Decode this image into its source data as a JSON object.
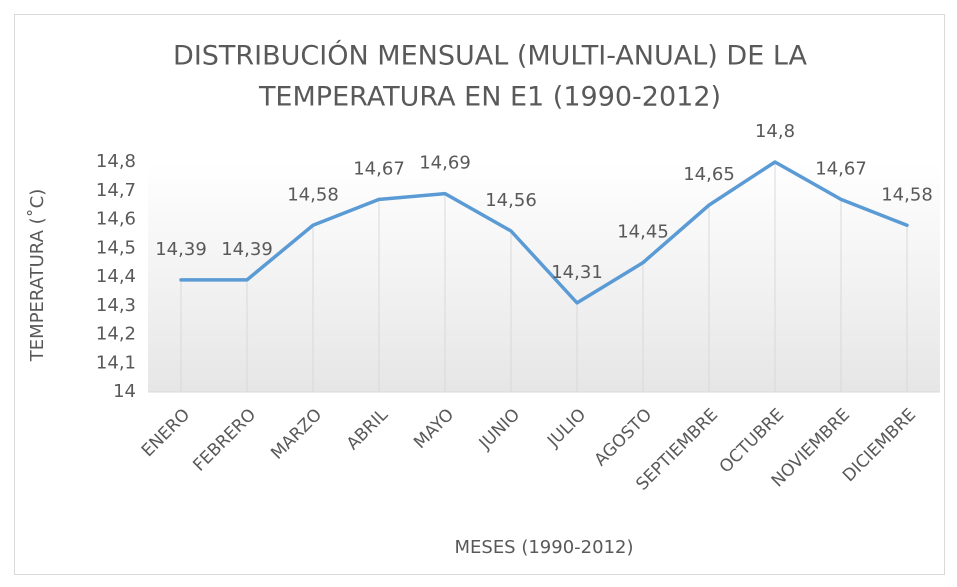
{
  "chart_data": {
    "type": "line",
    "title": "DISTRIBUCIÓN MENSUAL (MULTI-ANUAL) DE LA TEMPERATURA EN E1 (1990-2012)",
    "title_lines": [
      "DISTRIBUCIÓN MENSUAL (MULTI-ANUAL) DE LA",
      "TEMPERATURA EN E1 (1990-2012)"
    ],
    "x_label": "MESES (1990-2012)",
    "y_label": "TEMPERATURA (˚C)",
    "categories": [
      "ENERO",
      "FEBRERO",
      "MARZO",
      "ABRIL",
      "MAYO",
      "JUNIO",
      "JULIO",
      "AGOSTO",
      "SEPTIEMBRE",
      "OCTUBRE",
      "NOVIEMBRE",
      "DICIEMBRE"
    ],
    "series": [
      {
        "color": "#5b9bd5",
        "values": [
          14.39,
          14.39,
          14.58,
          14.67,
          14.69,
          14.56,
          14.31,
          14.45,
          14.65,
          14.8,
          14.67,
          14.58
        ],
        "value_labels": [
          "14,39",
          "14,39",
          "14,58",
          "14,67",
          "14,69",
          "14,56",
          "14,31",
          "14,45",
          "14,65",
          "14,8",
          "14,67",
          "14,58"
        ]
      }
    ],
    "ylim": [
      14,
      14.8
    ],
    "yticks": [
      14,
      {
        "value": 14.1,
        "label": "14,1"
      },
      {
        "value": 14.2,
        "label": "14,2"
      },
      {
        "value": 14.3,
        "label": "14,3"
      },
      {
        "value": 14.4,
        "label": "14,4"
      },
      {
        "value": 14.5,
        "label": "14,5"
      },
      {
        "value": 14.6,
        "label": "14,6"
      },
      {
        "value": 14.7,
        "label": "14,7"
      },
      {
        "value": 14.8,
        "label": "14,8"
      }
    ],
    "drop_lines": true
  }
}
